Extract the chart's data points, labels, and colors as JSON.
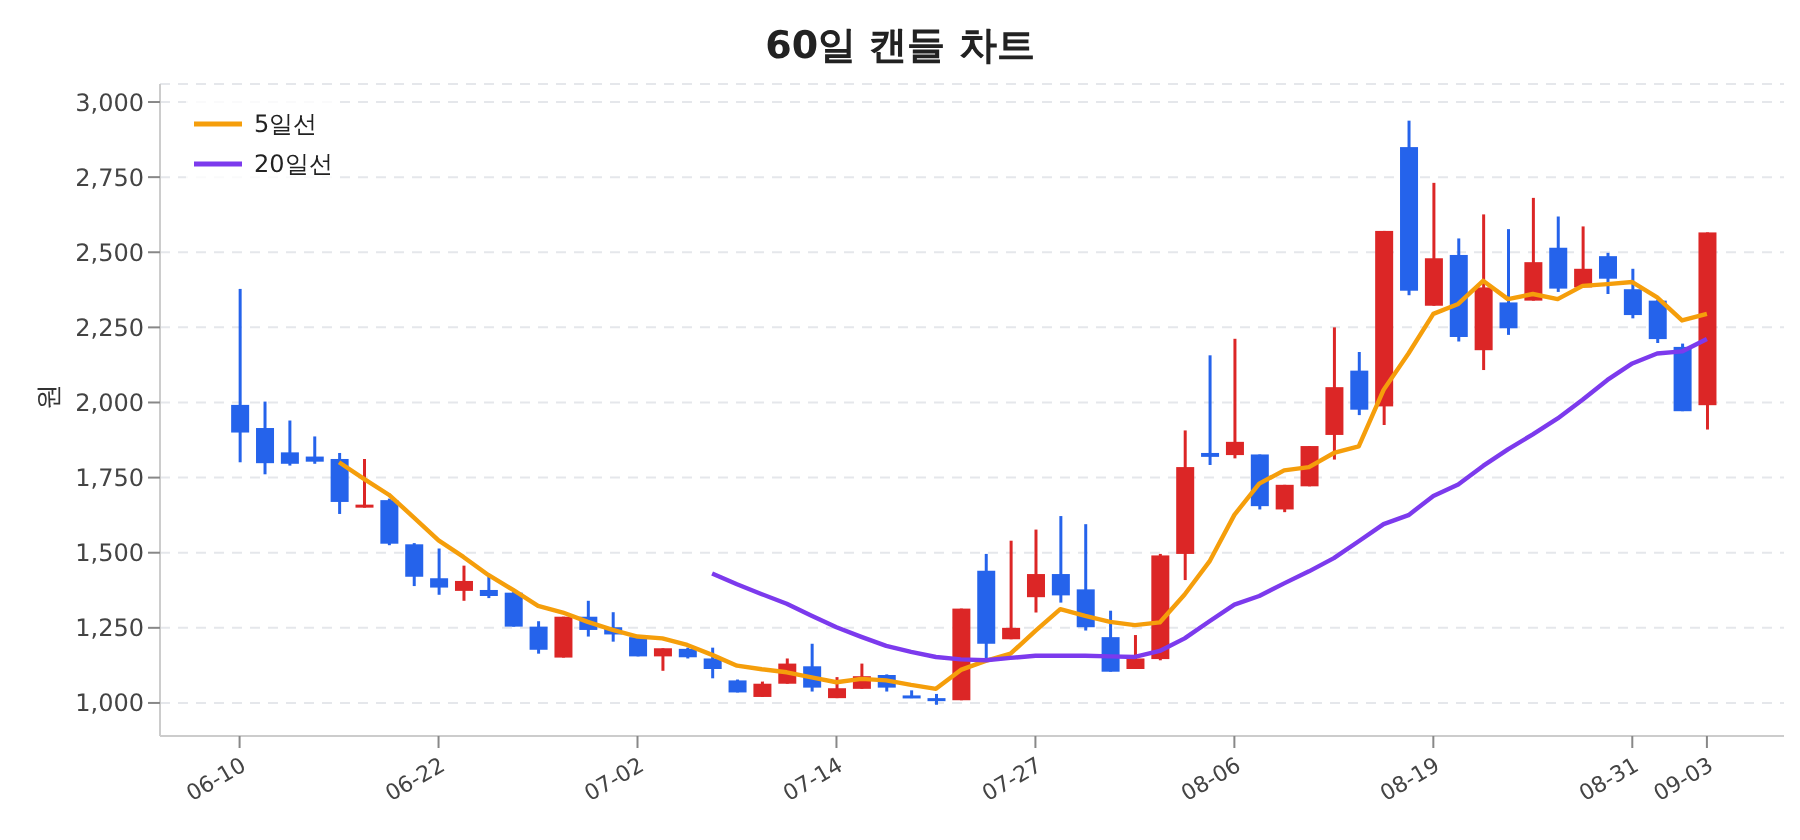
{
  "chart_data": {
    "type": "candlestick",
    "title": "60일 캔들 차트",
    "ylabel": "원",
    "categories": [
      "06-10",
      null,
      null,
      null,
      null,
      null,
      null,
      null,
      "06-22",
      null,
      null,
      null,
      null,
      null,
      null,
      null,
      "07-02",
      null,
      null,
      null,
      null,
      null,
      null,
      null,
      "07-14",
      null,
      null,
      null,
      null,
      null,
      null,
      null,
      "07-27",
      null,
      null,
      null,
      null,
      null,
      null,
      null,
      "08-06",
      null,
      null,
      null,
      null,
      null,
      null,
      null,
      "08-19",
      null,
      null,
      null,
      null,
      null,
      null,
      null,
      "08-31",
      null,
      null,
      "09-03"
    ],
    "ohlc": [
      [
        1992,
        2378,
        1801,
        1900
      ],
      [
        1915,
        2003,
        1761,
        1798
      ],
      [
        1834,
        1940,
        1790,
        1796
      ],
      [
        1820,
        1887,
        1796,
        1803
      ],
      [
        1812,
        1832,
        1629,
        1669
      ],
      [
        1650,
        1812,
        1650,
        1660
      ],
      [
        1675,
        1680,
        1525,
        1530
      ],
      [
        1528,
        1532,
        1389,
        1420
      ],
      [
        1415,
        1514,
        1360,
        1384
      ],
      [
        1373,
        1457,
        1340,
        1406
      ],
      [
        1376,
        1420,
        1349,
        1356
      ],
      [
        1367,
        1370,
        1254,
        1254
      ],
      [
        1254,
        1272,
        1164,
        1177
      ],
      [
        1151,
        1287,
        1151,
        1287
      ],
      [
        1287,
        1340,
        1221,
        1243
      ],
      [
        1252,
        1302,
        1204,
        1228
      ],
      [
        1219,
        1222,
        1155,
        1155
      ],
      [
        1155,
        1182,
        1107,
        1182
      ],
      [
        1180,
        1184,
        1148,
        1152
      ],
      [
        1148,
        1184,
        1082,
        1113
      ],
      [
        1075,
        1078,
        1035,
        1035
      ],
      [
        1020,
        1071,
        1020,
        1064
      ],
      [
        1064,
        1148,
        1064,
        1131
      ],
      [
        1122,
        1197,
        1038,
        1051
      ],
      [
        1016,
        1086,
        1016,
        1049
      ],
      [
        1047,
        1131,
        1047,
        1089
      ],
      [
        1093,
        1095,
        1038,
        1051
      ],
      [
        1025,
        1042,
        1016,
        1020
      ],
      [
        1016,
        1030,
        994,
        1009
      ],
      [
        1009,
        1314,
        1009,
        1314
      ],
      [
        1440,
        1496,
        1148,
        1197
      ],
      [
        1212,
        1540,
        1212,
        1250
      ],
      [
        1352,
        1577,
        1301,
        1429
      ],
      [
        1429,
        1622,
        1334,
        1358
      ],
      [
        1378,
        1595,
        1241,
        1252
      ],
      [
        1219,
        1307,
        1104,
        1104
      ],
      [
        1113,
        1226,
        1113,
        1148
      ],
      [
        1146,
        1496,
        1142,
        1491
      ],
      [
        1496,
        1907,
        1409,
        1785
      ],
      [
        1832,
        2157,
        1792,
        1819
      ],
      [
        1825,
        2212,
        1814,
        1869
      ],
      [
        1827,
        1827,
        1644,
        1655
      ],
      [
        1644,
        1726,
        1635,
        1726
      ],
      [
        1721,
        1855,
        1721,
        1855
      ],
      [
        1892,
        2250,
        1810,
        2051
      ],
      [
        2106,
        2168,
        1958,
        1976
      ],
      [
        1987,
        2571,
        1925,
        2571
      ],
      [
        2850,
        2938,
        2357,
        2372
      ],
      [
        2322,
        2731,
        2322,
        2480
      ],
      [
        2491,
        2546,
        2203,
        2218
      ],
      [
        2174,
        2626,
        2108,
        2383
      ],
      [
        2333,
        2577,
        2225,
        2247
      ],
      [
        2339,
        2681,
        2339,
        2467
      ],
      [
        2515,
        2619,
        2368,
        2379
      ],
      [
        2383,
        2586,
        2383,
        2445
      ],
      [
        2487,
        2498,
        2361,
        2412
      ],
      [
        2377,
        2445,
        2280,
        2291
      ],
      [
        2339,
        2342,
        2198,
        2211
      ],
      [
        2185,
        2196,
        1971,
        1971
      ],
      [
        1991,
        2566,
        1910,
        2566
      ]
    ],
    "colors": [
      "#2563eb",
      "#2563eb",
      "#2563eb",
      "#2563eb",
      "#2563eb",
      "#dc2626",
      "#2563eb",
      "#2563eb",
      "#2563eb",
      "#dc2626",
      "#2563eb",
      "#2563eb",
      "#2563eb",
      "#dc2626",
      "#2563eb",
      "#2563eb",
      "#2563eb",
      "#dc2626",
      "#2563eb",
      "#2563eb",
      "#2563eb",
      "#dc2626",
      "#dc2626",
      "#2563eb",
      "#dc2626",
      "#dc2626",
      "#2563eb",
      "#2563eb",
      "#2563eb",
      "#dc2626",
      "#2563eb",
      "#dc2626",
      "#dc2626",
      "#2563eb",
      "#2563eb",
      "#2563eb",
      "#dc2626",
      "#dc2626",
      "#dc2626",
      "#2563eb",
      "#dc2626",
      "#2563eb",
      "#dc2626",
      "#dc2626",
      "#dc2626",
      "#2563eb",
      "#dc2626",
      "#2563eb",
      "#dc2626",
      "#2563eb",
      "#dc2626",
      "#2563eb",
      "#dc2626",
      "#2563eb",
      "#dc2626",
      "#2563eb",
      "#2563eb",
      "#2563eb",
      "#2563eb",
      "#dc2626"
    ],
    "series": [
      {
        "name": "5일선",
        "type": "line",
        "color": "#f59e0b",
        "values": [
          null,
          null,
          null,
          null,
          1801,
          1746,
          1693,
          1618,
          1541,
          1486,
          1426,
          1376,
          1323,
          1301,
          1270,
          1243,
          1221,
          1215,
          1193,
          1160,
          1124,
          1112,
          1102,
          1085,
          1069,
          1080,
          1075,
          1060,
          1047,
          1110,
          1140,
          1164,
          1240,
          1312,
          1290,
          1270,
          1259,
          1268,
          1361,
          1471,
          1626,
          1730,
          1774,
          1785,
          1832,
          1854,
          2042,
          2163,
          2295,
          2328,
          2405,
          2344,
          2361,
          2344,
          2388,
          2394,
          2401,
          2350,
          2273,
          2295
        ]
      },
      {
        "name": "20일선",
        "type": "line",
        "color": "#7c3aed",
        "values": [
          null,
          null,
          null,
          null,
          null,
          null,
          null,
          null,
          null,
          null,
          null,
          null,
          null,
          null,
          null,
          null,
          null,
          null,
          null,
          1431,
          1395,
          1362,
          1330,
          1290,
          1252,
          1220,
          1190,
          1170,
          1153,
          1145,
          1142,
          1150,
          1157,
          1157,
          1157,
          1155,
          1153,
          1173,
          1215,
          1272,
          1327,
          1356,
          1398,
          1438,
          1482,
          1538,
          1595,
          1625,
          1689,
          1727,
          1789,
          1844,
          1894,
          1947,
          2009,
          2075,
          2130,
          2163,
          2170,
          2211
        ]
      }
    ],
    "ylim": [
      890,
      3060
    ],
    "yticks": [
      {
        "value": 1000,
        "label": "1,000"
      },
      {
        "value": 1250,
        "label": "1,250"
      },
      {
        "value": 1500,
        "label": "1,500"
      },
      {
        "value": 1750,
        "label": "1,750"
      },
      {
        "value": 2000,
        "label": "2,000"
      },
      {
        "value": 2250,
        "label": "2,250"
      },
      {
        "value": 2500,
        "label": "2,500"
      },
      {
        "value": 2750,
        "label": "2,750"
      },
      {
        "value": 3000,
        "label": "3,000"
      }
    ],
    "grid": "y",
    "legend": "top left",
    "marker": "none",
    "line_style": "solid"
  }
}
